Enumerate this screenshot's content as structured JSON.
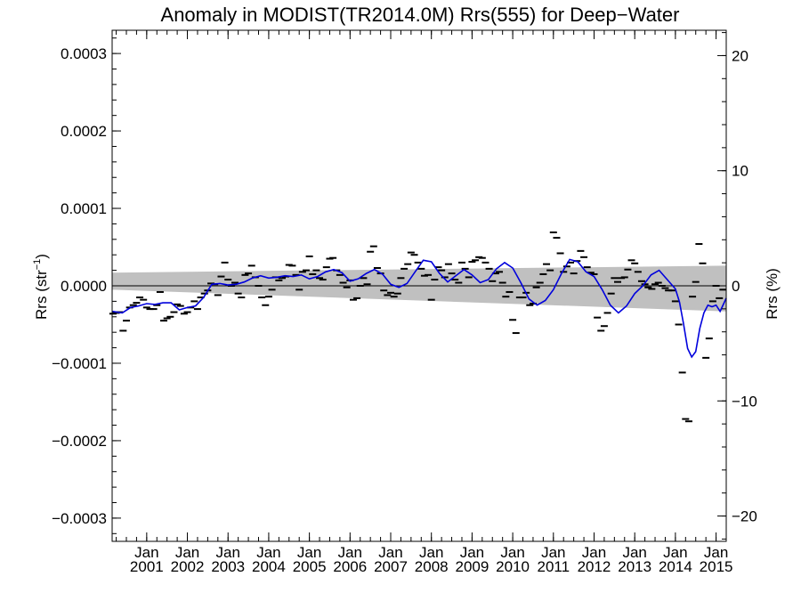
{
  "chart_data": {
    "type": "line",
    "title": "Anomaly in MODIST(TR2014.0M) Rrs(555) for Deep−Water",
    "ylabel_left": "Rrs (str",
    "ylabel_left_sup": "−1",
    "ylabel_left_close": ")",
    "ylabel_right": "Rrs (%)",
    "xlim": [
      2000.15,
      2015.25
    ],
    "ylim": [
      -0.00033,
      0.00033
    ],
    "ylim_right": [
      -22.2,
      22.2
    ],
    "y_ticks": [
      {
        "value": 0.0003,
        "label": "0.0003"
      },
      {
        "value": 0.0002,
        "label": "0.0002"
      },
      {
        "value": 0.0001,
        "label": "0.0001"
      },
      {
        "value": 0.0,
        "label": "0.0000"
      },
      {
        "value": -0.0001,
        "label": "−0.0001"
      },
      {
        "value": -0.0002,
        "label": "−0.0002"
      },
      {
        "value": -0.0003,
        "label": "−0.0003"
      }
    ],
    "y_right_ticks": [
      {
        "value": 20,
        "label": "20"
      },
      {
        "value": 10,
        "label": "10"
      },
      {
        "value": 0,
        "label": "0"
      },
      {
        "value": -10,
        "label": "−10"
      },
      {
        "value": -20,
        "label": "−20"
      }
    ],
    "x_ticks": [
      {
        "value": 2001,
        "month": "Jan",
        "year": "2001"
      },
      {
        "value": 2002,
        "month": "Jan",
        "year": "2002"
      },
      {
        "value": 2003,
        "month": "Jan",
        "year": "2003"
      },
      {
        "value": 2004,
        "month": "Jan",
        "year": "2004"
      },
      {
        "value": 2005,
        "month": "Jan",
        "year": "2005"
      },
      {
        "value": 2006,
        "month": "Jan",
        "year": "2006"
      },
      {
        "value": 2007,
        "month": "Jan",
        "year": "2007"
      },
      {
        "value": 2008,
        "month": "Jan",
        "year": "2008"
      },
      {
        "value": 2009,
        "month": "Jan",
        "year": "2009"
      },
      {
        "value": 2010,
        "month": "Jan",
        "year": "2010"
      },
      {
        "value": 2011,
        "month": "Jan",
        "year": "2011"
      },
      {
        "value": 2012,
        "month": "Jan",
        "year": "2012"
      },
      {
        "value": 2013,
        "month": "Jan",
        "year": "2013"
      },
      {
        "value": 2014,
        "month": "Jan",
        "year": "2014"
      },
      {
        "value": 2015,
        "month": "Jan",
        "year": "2015"
      }
    ],
    "zero_line": 0,
    "band": {
      "color": "#c0c0c0",
      "x": [
        2000.15,
        2015.25
      ],
      "upper": [
        1.7e-05,
        2.6e-05
      ],
      "lower": [
        -5e-06,
        -3.3e-05
      ]
    },
    "monthly_points": {
      "color": "#000000",
      "x": [
        2000.17,
        2000.25,
        2000.33,
        2000.42,
        2000.5,
        2000.58,
        2000.67,
        2000.75,
        2000.83,
        2000.92,
        2001.0,
        2001.08,
        2001.17,
        2001.25,
        2001.33,
        2001.42,
        2001.5,
        2001.58,
        2001.67,
        2001.75,
        2001.83,
        2001.92,
        2002.0,
        2002.08,
        2002.17,
        2002.25,
        2002.33,
        2002.42,
        2002.5,
        2002.58,
        2002.67,
        2002.75,
        2002.83,
        2002.92,
        2003.0,
        2003.08,
        2003.17,
        2003.25,
        2003.33,
        2003.42,
        2003.5,
        2003.58,
        2003.67,
        2003.75,
        2003.83,
        2003.92,
        2004.0,
        2004.08,
        2004.17,
        2004.25,
        2004.33,
        2004.42,
        2004.5,
        2004.58,
        2004.67,
        2004.75,
        2004.83,
        2004.92,
        2005.0,
        2005.08,
        2005.17,
        2005.25,
        2005.33,
        2005.42,
        2005.5,
        2005.58,
        2005.67,
        2005.75,
        2005.83,
        2005.92,
        2006.0,
        2006.08,
        2006.17,
        2006.25,
        2006.33,
        2006.42,
        2006.5,
        2006.58,
        2006.67,
        2006.75,
        2006.83,
        2006.92,
        2007.0,
        2007.08,
        2007.17,
        2007.25,
        2007.33,
        2007.42,
        2007.5,
        2007.58,
        2007.67,
        2007.75,
        2007.83,
        2007.92,
        2008.0,
        2008.08,
        2008.17,
        2008.25,
        2008.33,
        2008.42,
        2008.5,
        2008.58,
        2008.67,
        2008.75,
        2008.83,
        2008.92,
        2009.0,
        2009.08,
        2009.17,
        2009.25,
        2009.33,
        2009.42,
        2009.5,
        2009.58,
        2009.67,
        2009.75,
        2009.83,
        2009.92,
        2010.0,
        2010.08,
        2010.17,
        2010.25,
        2010.33,
        2010.42,
        2010.5,
        2010.58,
        2010.67,
        2010.75,
        2010.83,
        2010.92,
        2011.0,
        2011.08,
        2011.17,
        2011.25,
        2011.33,
        2011.42,
        2011.5,
        2011.58,
        2011.67,
        2011.75,
        2011.83,
        2011.92,
        2012.0,
        2012.08,
        2012.17,
        2012.25,
        2012.33,
        2012.42,
        2012.5,
        2012.58,
        2012.67,
        2012.75,
        2012.83,
        2012.92,
        2013.0,
        2013.08,
        2013.17,
        2013.25,
        2013.33,
        2013.42,
        2013.5,
        2013.58,
        2013.67,
        2013.75,
        2013.83,
        2013.92,
        2014.0,
        2014.08,
        2014.17,
        2014.25,
        2014.33,
        2014.42,
        2014.5,
        2014.58,
        2014.67,
        2014.75,
        2014.83,
        2014.92,
        2015.0,
        2015.08,
        2015.17
      ],
      "y": [
        -3.6e-05,
        -3.5e-05,
        -3.4e-05,
        -5.8e-05,
        -4.5e-05,
        -2.8e-05,
        -2.5e-05,
        -2.2e-05,
        -1.5e-05,
        -1.8e-05,
        -2.8e-05,
        -3e-05,
        -3e-05,
        -2.5e-05,
        -8e-06,
        -4.5e-05,
        -4.2e-05,
        -4e-05,
        -3.4e-05,
        -2.4e-05,
        -2.6e-05,
        -3.6e-05,
        -3.4e-05,
        -2.8e-05,
        -2e-05,
        -3e-05,
        -1.5e-05,
        -1e-05,
        -6e-06,
        3e-06,
        2e-06,
        -1.2e-05,
        1.2e-05,
        3e-05,
        8e-06,
        0.0,
        4e-06,
        -1e-05,
        -1.5e-05,
        1.4e-05,
        1.6e-05,
        2.6e-05,
        1.1e-05,
        0.0,
        -1.5e-05,
        -2.5e-05,
        -1.4e-05,
        -5e-06,
        1.1e-05,
        7e-06,
        1e-05,
        1.2e-05,
        2.7e-05,
        2.6e-05,
        1.4e-05,
        -5e-06,
        1.8e-05,
        2e-05,
        3.8e-05,
        1.5e-05,
        2e-05,
        1e-05,
        8e-06,
        2.4e-05,
        3.5e-05,
        3.6e-05,
        2e-05,
        1.4e-05,
        4e-06,
        -2e-06,
        7e-06,
        -1.8e-05,
        -1.6e-05,
        0.0,
        1e-05,
        2e-06,
        4.4e-05,
        5.1e-05,
        2.3e-05,
        1.6e-05,
        -6e-06,
        -1.2e-05,
        -9e-06,
        -1.4e-05,
        -1e-05,
        1e-05,
        2.2e-05,
        2.8e-05,
        4.3e-05,
        4e-05,
        3e-05,
        2.2e-05,
        1.3e-05,
        1.4e-05,
        -1.8e-05,
        8e-06,
        2.4e-05,
        2e-05,
        1.1e-05,
        2.8e-05,
        1.6e-05,
        8e-06,
        4e-06,
        3e-05,
        2.2e-05,
        1.1e-05,
        3.1e-05,
        3.3e-05,
        3.7e-05,
        3.6e-05,
        3e-05,
        2.2e-05,
        6e-06,
        1.6e-05,
        1.8e-05,
        4e-06,
        -1.4e-05,
        -8e-06,
        -4.4e-05,
        -6.1e-05,
        -1.5e-05,
        -1.5e-05,
        -9e-06,
        -2.5e-05,
        -2.3e-05,
        -2e-06,
        4e-06,
        1.5e-05,
        2.8e-05,
        2e-05,
        6.9e-05,
        6.2e-05,
        4.2e-05,
        1.8e-05,
        2.5e-05,
        3e-05,
        1.6e-05,
        3.2e-05,
        4.5e-05,
        3.7e-05,
        2.4e-05,
        1.7e-05,
        1.5e-05,
        -4.1e-05,
        -5.8e-05,
        -5.2e-05,
        -3.5e-05,
        -1e-05,
        1e-05,
        5e-06,
        1e-05,
        1.1e-05,
        2.1e-05,
        3.3e-05,
        2.9e-05,
        1.8e-05,
        6e-06,
        2e-06,
        -2e-06,
        -4e-06,
        2e-06,
        4e-06,
        0.0,
        -3e-06,
        -6e-06,
        -6e-06,
        -2e-05,
        -5e-05,
        -0.000112,
        -0.000172,
        -0.000175,
        -1.4e-05,
        5e-06,
        5.4e-05,
        2.9e-05,
        -9.3e-05,
        -6.8e-05,
        -2e-05,
        0.0,
        -1.6e-05,
        -5e-06
      ]
    },
    "smoothed_series": {
      "color": "#0000dd",
      "x": [
        2000.15,
        2000.4,
        2000.6,
        2000.8,
        2001.0,
        2001.2,
        2001.4,
        2001.6,
        2001.8,
        2002.0,
        2002.2,
        2002.4,
        2002.6,
        2002.8,
        2003.0,
        2003.2,
        2003.4,
        2003.6,
        2003.8,
        2004.0,
        2004.2,
        2004.4,
        2004.6,
        2004.8,
        2005.0,
        2005.2,
        2005.4,
        2005.6,
        2005.8,
        2006.0,
        2006.2,
        2006.4,
        2006.6,
        2006.8,
        2007.0,
        2007.2,
        2007.4,
        2007.6,
        2007.8,
        2008.0,
        2008.2,
        2008.4,
        2008.6,
        2008.8,
        2009.0,
        2009.2,
        2009.4,
        2009.6,
        2009.8,
        2010.0,
        2010.2,
        2010.4,
        2010.6,
        2010.8,
        2011.0,
        2011.2,
        2011.4,
        2011.6,
        2011.8,
        2012.0,
        2012.2,
        2012.4,
        2012.6,
        2012.8,
        2013.0,
        2013.2,
        2013.4,
        2013.6,
        2013.8,
        2014.0,
        2014.1,
        2014.2,
        2014.3,
        2014.4,
        2014.5,
        2014.6,
        2014.7,
        2014.8,
        2014.9,
        2015.0,
        2015.1,
        2015.25
      ],
      "y": [
        -3.3e-05,
        -3.5e-05,
        -2.8e-05,
        -2.6e-05,
        -2.3e-05,
        -2.4e-05,
        -2.2e-05,
        -2.2e-05,
        -3.1e-05,
        -2.8e-05,
        -2.6e-05,
        -1.5e-05,
        2e-06,
        3e-06,
        1e-06,
        2e-06,
        5e-06,
        1e-05,
        1.3e-05,
        1e-05,
        1.1e-05,
        1.3e-05,
        1.2e-05,
        1.4e-05,
        9e-06,
        1.2e-05,
        1.8e-05,
        2.1e-05,
        1.7e-05,
        6e-06,
        9e-06,
        1.6e-05,
        2.1e-05,
        1.5e-05,
        2e-06,
        -2e-06,
        3e-06,
        1.8e-05,
        3.3e-05,
        3.1e-05,
        1.6e-05,
        5e-06,
        1.3e-05,
        2.1e-05,
        1.4e-05,
        4e-06,
        8e-06,
        2.2e-05,
        3e-05,
        2.3e-05,
        4e-06,
        -1.7e-05,
        -2.5e-05,
        -1.9e-05,
        -5e-06,
        1.6e-05,
        3.4e-05,
        3.1e-05,
        1.8e-05,
        1.2e-05,
        -5e-06,
        -2.5e-05,
        -3.5e-05,
        -2.6e-05,
        -1e-05,
        0.0,
        1.4e-05,
        2e-05,
        8e-06,
        -4e-06,
        -2.1e-05,
        -4.9e-05,
        -8.1e-05,
        -9.2e-05,
        -8.5e-05,
        -5.5e-05,
        -3.5e-05,
        -2.5e-05,
        -2.7e-05,
        -2.5e-05,
        -3.3e-05,
        -1.6e-05
      ]
    }
  }
}
